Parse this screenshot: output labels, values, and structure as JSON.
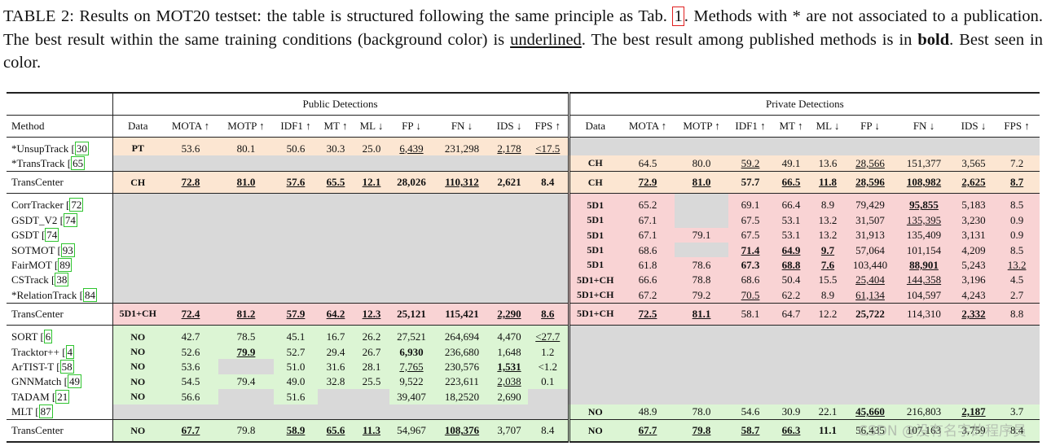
{
  "caption": {
    "p1": "TABLE 2: Results on MOT20 testset: the table is structured following the same principle as Tab. ",
    "ref": "1",
    "p2": ". Methods with * are not associated to a publication. The best result within the same training conditions (background color) is ",
    "underlined": "underlined",
    "p3": ". The best result among published methods is in ",
    "bold": "bold",
    "p4": ". Best seen in color."
  },
  "table": {
    "public_header": "Public Detections",
    "private_header": "Private Detections",
    "columns_left": [
      "Method",
      "Data",
      "MOTA ↑",
      "MOTP ↑",
      "IDF1 ↑",
      "MT ↑",
      "ML ↓",
      "FP ↓",
      "FN ↓",
      "IDS ↓",
      "FPS ↑"
    ],
    "columns_right": [
      "Data",
      "MOTA ↑",
      "MOTP ↑",
      "IDF1 ↑",
      "MT ↑",
      "ML ↓",
      "FP ↓",
      "FN ↓",
      "IDS ↓",
      "FPS ↑"
    ]
  },
  "rows": [
    {
      "method": "*UnsupTrack [",
      "cite": "30",
      "pub": [
        "PT",
        "53.6",
        "80.1",
        "50.6",
        "30.3",
        "25.0",
        "6,439",
        "231,298",
        "2,178",
        "<17.5"
      ],
      "priv": null
    },
    {
      "method": "*TransTrack [",
      "cite": "65",
      "pub": null,
      "priv": [
        "CH",
        "64.5",
        "80.0",
        "59.2",
        "49.1",
        "13.6",
        "28,566",
        "151,377",
        "3,565",
        "7.2"
      ]
    },
    {
      "method": "TransCenter",
      "cite": "",
      "pub": [
        "CH",
        "72.8",
        "81.0",
        "57.6",
        "65.5",
        "12.1",
        "28,026",
        "110,312",
        "2,621",
        "8.4"
      ],
      "priv": [
        "CH",
        "72.9",
        "81.0",
        "57.7",
        "66.5",
        "11.8",
        "28,596",
        "108,982",
        "2,625",
        "8.7"
      ]
    },
    {
      "method": "CorrTracker [",
      "cite": "72",
      "pub": null,
      "priv": [
        "5D1",
        "65.2",
        "",
        "69.1",
        "66.4",
        "8.9",
        "79,429",
        "95,855",
        "5,183",
        "8.5"
      ]
    },
    {
      "method": "GSDT_V2 [",
      "cite": "74",
      "pub": null,
      "priv": [
        "5D1",
        "67.1",
        "",
        "67.5",
        "53.1",
        "13.2",
        "31,507",
        "135,395",
        "3,230",
        "0.9"
      ]
    },
    {
      "method": "GSDT [",
      "cite": "74",
      "pub": null,
      "priv": [
        "5D1",
        "67.1",
        "79.1",
        "67.5",
        "53.1",
        "13.2",
        "31,913",
        "135,409",
        "3,131",
        "0.9"
      ]
    },
    {
      "method": "SOTMOT [",
      "cite": "93",
      "pub": null,
      "priv": [
        "5D1",
        "68.6",
        "",
        "71.4",
        "64.9",
        "9.7",
        "57,064",
        "101,154",
        "4,209",
        "8.5"
      ]
    },
    {
      "method": "FairMOT [",
      "cite": "89",
      "pub": null,
      "priv": [
        "5D1",
        "61.8",
        "78.6",
        "67.3",
        "68.8",
        "7.6",
        "103,440",
        "88,901",
        "5,243",
        "13.2"
      ]
    },
    {
      "method": "CSTrack [",
      "cite": "38",
      "pub": null,
      "priv": [
        "5D1+CH",
        "66.6",
        "78.8",
        "68.6",
        "50.4",
        "15.5",
        "25,404",
        "144,358",
        "3,196",
        "4.5"
      ]
    },
    {
      "method": "*RelationTrack [",
      "cite": "84",
      "pub": null,
      "priv": [
        "5D1+CH",
        "67.2",
        "79.2",
        "70.5",
        "62.2",
        "8.9",
        "61,134",
        "104,597",
        "4,243",
        "2.7"
      ]
    },
    {
      "method": "TransCenter",
      "cite": "",
      "pub": [
        "5D1+CH",
        "72.4",
        "81.2",
        "57.9",
        "64.2",
        "12.3",
        "25,121",
        "115,421",
        "2,290",
        "8.6"
      ],
      "priv": [
        "5D1+CH",
        "72.5",
        "81.1",
        "58.1",
        "64.7",
        "12.2",
        "25,722",
        "114,310",
        "2,332",
        "8.8"
      ]
    },
    {
      "method": "SORT [",
      "cite": "6",
      "pub": [
        "NO",
        "42.7",
        "78.5",
        "45.1",
        "16.7",
        "26.2",
        "27,521",
        "264,694",
        "4,470",
        "<27.7"
      ],
      "priv": null
    },
    {
      "method": "Tracktor++ [",
      "cite": "4",
      "pub": [
        "NO",
        "52.6",
        "79.9",
        "52.7",
        "29.4",
        "26.7",
        "6,930",
        "236,680",
        "1,648",
        "1.2"
      ],
      "priv": null
    },
    {
      "method": "ArTIST-T [",
      "cite": "58",
      "pub": [
        "NO",
        "53.6",
        "",
        "51.0",
        "31.6",
        "28.1",
        "7,765",
        "230,576",
        "1,531",
        "<1.2"
      ],
      "priv": null
    },
    {
      "method": "GNNMatch [",
      "cite": "49",
      "pub": [
        "NO",
        "54.5",
        "79.4",
        "49.0",
        "32.8",
        "25.5",
        "9,522",
        "223,611",
        "2,038",
        "0.1"
      ],
      "priv": null
    },
    {
      "method": "TADAM [",
      "cite": "21",
      "pub": [
        "NO",
        "56.6",
        "",
        "51.6",
        "",
        "",
        "39,407",
        "18,2520",
        "2,690",
        ""
      ],
      "priv": null
    },
    {
      "method": "MLT [",
      "cite": "87",
      "pub": null,
      "priv": [
        "NO",
        "48.9",
        "78.0",
        "54.6",
        "30.9",
        "22.1",
        "45,660",
        "216,803",
        "2,187",
        "3.7"
      ]
    },
    {
      "method": "TransCenter",
      "cite": "",
      "pub": [
        "NO",
        "67.7",
        "79.8",
        "58.9",
        "65.6",
        "11.3",
        "54,967",
        "108,376",
        "3,707",
        "8.4"
      ],
      "priv": [
        "NO",
        "67.7",
        "79.8",
        "58.7",
        "66.3",
        "11.1",
        "56,435",
        "107,163",
        "3,759",
        "8.4"
      ]
    }
  ],
  "colors": {
    "gray": "#d9d9d9",
    "peach": "#fce6d2",
    "pink": "#f9d3d4",
    "green": "#dcf5d4"
  },
  "watermark": "CSDN @没有名字的程序员"
}
